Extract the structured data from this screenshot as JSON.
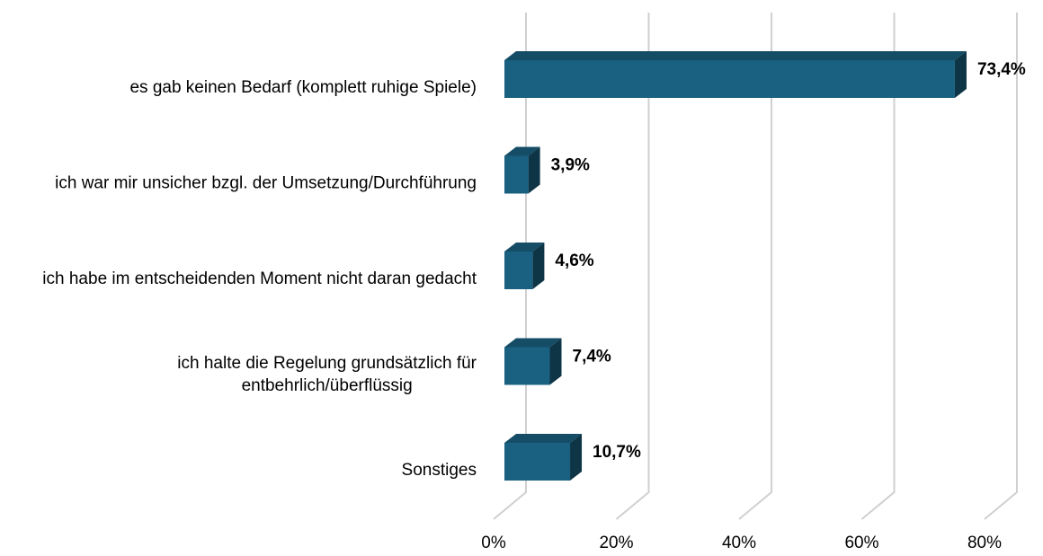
{
  "chart_data": {
    "type": "bar3d_horizontal",
    "categories": [
      "es gab keinen Bedarf (komplett ruhige Spiele)",
      "ich war mir unsicher bzgl. der Umsetzung/Durchführung",
      "ich habe im entscheidenden Moment nicht daran gedacht",
      "ich halte die Regelung grundsätzlich für entbehrlich/überflüssig",
      "Sonstiges"
    ],
    "values": [
      73.4,
      3.9,
      4.6,
      7.4,
      10.7
    ],
    "value_labels": [
      "73,4%",
      "3,9%",
      "4,6%",
      "7,4%",
      "10,7%"
    ],
    "color": "#1a6080",
    "xlim": [
      0,
      80
    ],
    "xticks": [
      {
        "value": 0,
        "label": "0%"
      },
      {
        "value": 20,
        "label": "20%"
      },
      {
        "value": 40,
        "label": "40%"
      },
      {
        "value": 60,
        "label": "60%"
      },
      {
        "value": 80,
        "label": "80%"
      }
    ],
    "grid": true
  }
}
